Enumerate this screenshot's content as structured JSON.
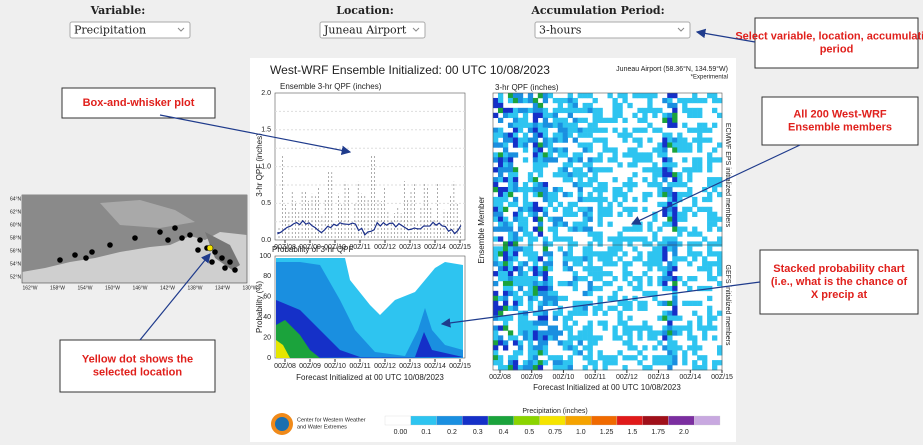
{
  "controls": [
    {
      "label": "Variable:",
      "value": "Precipitation"
    },
    {
      "label": "Location:",
      "value": "Juneau Airport"
    },
    {
      "label": "Accumulation Period:",
      "value": "3-hours"
    }
  ],
  "callouts": {
    "select": "Select variable, location, accumulation period",
    "box": "Box-and-whisker plot",
    "members": "All 200 West-WRF Ensemble members",
    "stacked": "Stacked probability chart (i.e., what is the chance of X precip at Y time)",
    "yellow": "Yellow dot shows the selected location"
  },
  "figure": {
    "title": "West-WRF Ensemble Initialized: 00 UTC 10/08/2023",
    "location": "Juneau Airport (58.36°N, 134.59°W)",
    "experimental": "*Experimental",
    "box_plot": {
      "title": "Ensemble 3-hr QPF (inches)",
      "ylabel": "3-hr QPF (inches)",
      "yticks": [
        "2.0",
        "1.5",
        "1.0",
        "0.5",
        "0.0"
      ]
    },
    "probability": {
      "title": "Probability of 3-hr QPF",
      "ylabel": "Probability (%)",
      "yticks": [
        "100",
        "80",
        "60",
        "40",
        "20",
        "0"
      ]
    },
    "heatmap": {
      "title": "3-hr QPF (inches)",
      "ylabel": "Ensemble Member",
      "side_labels": [
        "ECMWF EPS initialized members",
        "GEFS initialized members"
      ]
    },
    "xticks": [
      "00Z/08",
      "00Z/09",
      "00Z/10",
      "00Z/11",
      "00Z/12",
      "00Z/13",
      "00Z/14",
      "00Z/15"
    ],
    "xlabel": "Forecast Initialized at 00 UTC 10/08/2023",
    "colorbar": {
      "label": "Precipitation (inches)",
      "ticks": [
        "0.00",
        "0.1",
        "0.2",
        "0.3",
        "0.4",
        "0.5",
        "0.75",
        "1.0",
        "1.25",
        "1.5",
        "1.75",
        "2.0"
      ]
    },
    "logo_text": [
      "Center for Western Weather",
      "and Water Extremes"
    ]
  },
  "map": {
    "lat_labels": [
      "64°N",
      "62°N",
      "60°N",
      "58°N",
      "56°N",
      "54°N",
      "52°N"
    ],
    "lon_labels": [
      "162°W",
      "158°W",
      "154°W",
      "150°W",
      "146°W",
      "142°W",
      "138°W",
      "134°W",
      "130°W"
    ]
  }
}
